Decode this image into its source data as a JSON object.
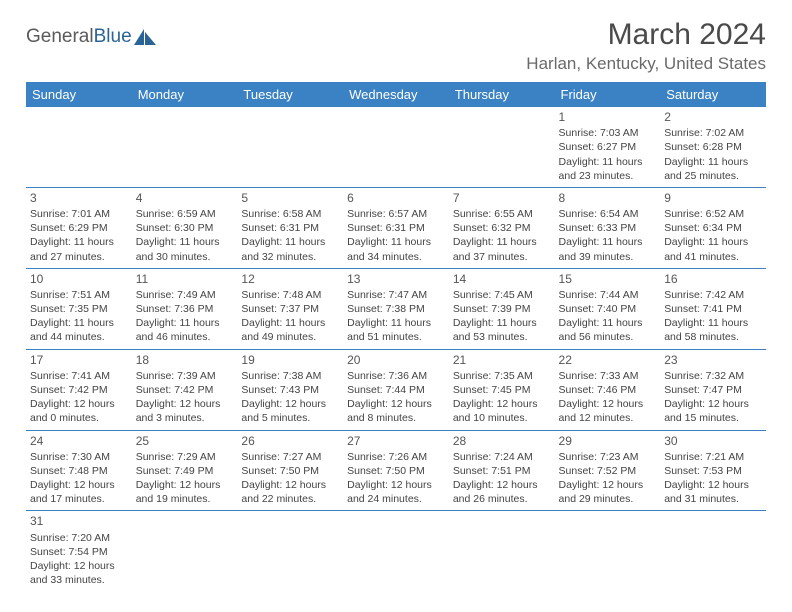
{
  "logo": {
    "text_general": "General",
    "text_blue": "Blue"
  },
  "header": {
    "title": "March 2024",
    "location": "Harlan, Kentucky, United States"
  },
  "days_of_week": [
    "Sunday",
    "Monday",
    "Tuesday",
    "Wednesday",
    "Thursday",
    "Friday",
    "Saturday"
  ],
  "colors": {
    "header_bg": "#3b82c4",
    "header_text": "#ffffff",
    "rule": "#3b82c4",
    "logo_gray": "#5a5a5a",
    "logo_blue": "#2a6496"
  },
  "weeks": [
    [
      null,
      null,
      null,
      null,
      null,
      {
        "n": "1",
        "sunrise": "Sunrise: 7:03 AM",
        "sunset": "Sunset: 6:27 PM",
        "daylight": "Daylight: 11 hours and 23 minutes."
      },
      {
        "n": "2",
        "sunrise": "Sunrise: 7:02 AM",
        "sunset": "Sunset: 6:28 PM",
        "daylight": "Daylight: 11 hours and 25 minutes."
      }
    ],
    [
      {
        "n": "3",
        "sunrise": "Sunrise: 7:01 AM",
        "sunset": "Sunset: 6:29 PM",
        "daylight": "Daylight: 11 hours and 27 minutes."
      },
      {
        "n": "4",
        "sunrise": "Sunrise: 6:59 AM",
        "sunset": "Sunset: 6:30 PM",
        "daylight": "Daylight: 11 hours and 30 minutes."
      },
      {
        "n": "5",
        "sunrise": "Sunrise: 6:58 AM",
        "sunset": "Sunset: 6:31 PM",
        "daylight": "Daylight: 11 hours and 32 minutes."
      },
      {
        "n": "6",
        "sunrise": "Sunrise: 6:57 AM",
        "sunset": "Sunset: 6:31 PM",
        "daylight": "Daylight: 11 hours and 34 minutes."
      },
      {
        "n": "7",
        "sunrise": "Sunrise: 6:55 AM",
        "sunset": "Sunset: 6:32 PM",
        "daylight": "Daylight: 11 hours and 37 minutes."
      },
      {
        "n": "8",
        "sunrise": "Sunrise: 6:54 AM",
        "sunset": "Sunset: 6:33 PM",
        "daylight": "Daylight: 11 hours and 39 minutes."
      },
      {
        "n": "9",
        "sunrise": "Sunrise: 6:52 AM",
        "sunset": "Sunset: 6:34 PM",
        "daylight": "Daylight: 11 hours and 41 minutes."
      }
    ],
    [
      {
        "n": "10",
        "sunrise": "Sunrise: 7:51 AM",
        "sunset": "Sunset: 7:35 PM",
        "daylight": "Daylight: 11 hours and 44 minutes."
      },
      {
        "n": "11",
        "sunrise": "Sunrise: 7:49 AM",
        "sunset": "Sunset: 7:36 PM",
        "daylight": "Daylight: 11 hours and 46 minutes."
      },
      {
        "n": "12",
        "sunrise": "Sunrise: 7:48 AM",
        "sunset": "Sunset: 7:37 PM",
        "daylight": "Daylight: 11 hours and 49 minutes."
      },
      {
        "n": "13",
        "sunrise": "Sunrise: 7:47 AM",
        "sunset": "Sunset: 7:38 PM",
        "daylight": "Daylight: 11 hours and 51 minutes."
      },
      {
        "n": "14",
        "sunrise": "Sunrise: 7:45 AM",
        "sunset": "Sunset: 7:39 PM",
        "daylight": "Daylight: 11 hours and 53 minutes."
      },
      {
        "n": "15",
        "sunrise": "Sunrise: 7:44 AM",
        "sunset": "Sunset: 7:40 PM",
        "daylight": "Daylight: 11 hours and 56 minutes."
      },
      {
        "n": "16",
        "sunrise": "Sunrise: 7:42 AM",
        "sunset": "Sunset: 7:41 PM",
        "daylight": "Daylight: 11 hours and 58 minutes."
      }
    ],
    [
      {
        "n": "17",
        "sunrise": "Sunrise: 7:41 AM",
        "sunset": "Sunset: 7:42 PM",
        "daylight": "Daylight: 12 hours and 0 minutes."
      },
      {
        "n": "18",
        "sunrise": "Sunrise: 7:39 AM",
        "sunset": "Sunset: 7:42 PM",
        "daylight": "Daylight: 12 hours and 3 minutes."
      },
      {
        "n": "19",
        "sunrise": "Sunrise: 7:38 AM",
        "sunset": "Sunset: 7:43 PM",
        "daylight": "Daylight: 12 hours and 5 minutes."
      },
      {
        "n": "20",
        "sunrise": "Sunrise: 7:36 AM",
        "sunset": "Sunset: 7:44 PM",
        "daylight": "Daylight: 12 hours and 8 minutes."
      },
      {
        "n": "21",
        "sunrise": "Sunrise: 7:35 AM",
        "sunset": "Sunset: 7:45 PM",
        "daylight": "Daylight: 12 hours and 10 minutes."
      },
      {
        "n": "22",
        "sunrise": "Sunrise: 7:33 AM",
        "sunset": "Sunset: 7:46 PM",
        "daylight": "Daylight: 12 hours and 12 minutes."
      },
      {
        "n": "23",
        "sunrise": "Sunrise: 7:32 AM",
        "sunset": "Sunset: 7:47 PM",
        "daylight": "Daylight: 12 hours and 15 minutes."
      }
    ],
    [
      {
        "n": "24",
        "sunrise": "Sunrise: 7:30 AM",
        "sunset": "Sunset: 7:48 PM",
        "daylight": "Daylight: 12 hours and 17 minutes."
      },
      {
        "n": "25",
        "sunrise": "Sunrise: 7:29 AM",
        "sunset": "Sunset: 7:49 PM",
        "daylight": "Daylight: 12 hours and 19 minutes."
      },
      {
        "n": "26",
        "sunrise": "Sunrise: 7:27 AM",
        "sunset": "Sunset: 7:50 PM",
        "daylight": "Daylight: 12 hours and 22 minutes."
      },
      {
        "n": "27",
        "sunrise": "Sunrise: 7:26 AM",
        "sunset": "Sunset: 7:50 PM",
        "daylight": "Daylight: 12 hours and 24 minutes."
      },
      {
        "n": "28",
        "sunrise": "Sunrise: 7:24 AM",
        "sunset": "Sunset: 7:51 PM",
        "daylight": "Daylight: 12 hours and 26 minutes."
      },
      {
        "n": "29",
        "sunrise": "Sunrise: 7:23 AM",
        "sunset": "Sunset: 7:52 PM",
        "daylight": "Daylight: 12 hours and 29 minutes."
      },
      {
        "n": "30",
        "sunrise": "Sunrise: 7:21 AM",
        "sunset": "Sunset: 7:53 PM",
        "daylight": "Daylight: 12 hours and 31 minutes."
      }
    ],
    [
      {
        "n": "31",
        "sunrise": "Sunrise: 7:20 AM",
        "sunset": "Sunset: 7:54 PM",
        "daylight": "Daylight: 12 hours and 33 minutes."
      },
      null,
      null,
      null,
      null,
      null,
      null
    ]
  ]
}
